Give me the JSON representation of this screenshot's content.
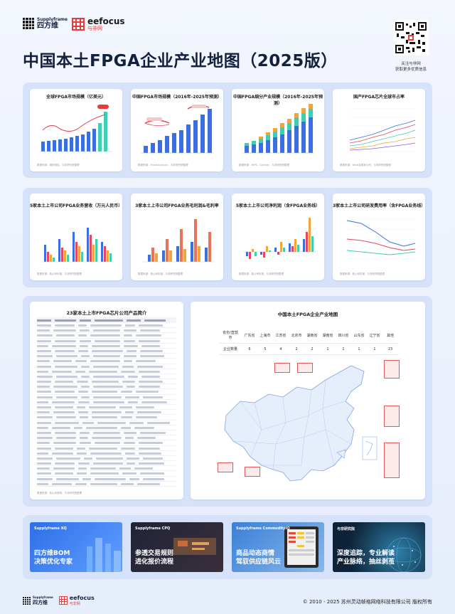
{
  "header": {
    "title": "中国本土FPGA企业产业地图（2025版）",
    "logo1_brand": "Supplyframe",
    "logo1_name": "四方维",
    "logo2_brand": "eefocus",
    "logo2_name": "与非网",
    "qr_caption_line1": "关注与非网",
    "qr_caption_line2": "获取更多优质信息"
  },
  "charts_row1": [
    {
      "title": "全球FPGA市场规模（亿美元）",
      "source": "数据来源：调研报告，与非研究院整理"
    },
    {
      "title": "中国FPGA市场规模（2016年-2025年预测）",
      "source": "数据来源：Frost&Sullivan，与非研究院整理"
    },
    {
      "title": "中国FPGA细分产业规模（2016年-2025年预测）",
      "source": "数据来源：MIPS，Gartner，与非研究院整理"
    },
    {
      "title": "国产FPGA芯片全球市占率",
      "source": "数据来源：Wind及各家公司，与非研究院整理"
    }
  ],
  "charts_row2": [
    {
      "title": "5家本土上市公司FPGA业务营收（万元人民币）",
      "source": "数据来源：各公司年报，与非研究院整理"
    },
    {
      "title": "3家本土上市公司FPGA业务毛利润&毛利率",
      "source": "数据来源：各公司年报，与非研究院整理"
    },
    {
      "title": "5家本土上市公司净利润（含FPGA业务线）",
      "source": "数据来源：各公司年报，与非研究院整理"
    },
    {
      "title": "3家本土上市公司研发费用率（含FPGA业务线）",
      "source": "数据来源：各公司年报，与非研究院整理"
    }
  ],
  "product_table": {
    "title": "23家本土上市FPGA芯片公司产品简介",
    "source": "数据来源：各公司官网，与非研究院整理"
  },
  "map": {
    "title": "中国本土FPGA企业产业地图",
    "row1_label": "省份/直辖市",
    "row2_label": "企业数量",
    "provinces": [
      "广东省",
      "上海市",
      "江苏省",
      "北京市",
      "湖南省",
      "湖南省",
      "四川省",
      "山东省",
      "辽宁省",
      "其他"
    ],
    "counts": [
      "6",
      "5",
      "4",
      "2",
      "2",
      "1",
      "1",
      "1",
      "1",
      "23"
    ]
  },
  "promos": [
    {
      "brand": "Supplyframe XQ",
      "line1": "四方维BOM",
      "line2": "决策优化专家"
    },
    {
      "brand": "Supplyframe CPQ",
      "line1": "参透交易规则",
      "line2": "进化报价流程"
    },
    {
      "brand": "Supplyframe CommodityIQ",
      "line1": "商品动态商情",
      "line2": "驾驭供应链风云"
    },
    {
      "brand": "与非研究院",
      "line1": "深度追踪，专业解读",
      "line2": "产业脉络，抽丝剥茧"
    }
  ],
  "footer": {
    "copyright": "© 2010 - 2025 苏州灵动帧格网络科技有限公司 版权所有",
    "logo1_brand": "Supplyframe",
    "logo1_name": "四方维",
    "logo2_brand": "eefocus",
    "logo2_name": "与非网"
  },
  "colors": {
    "accent_red": "#e83a3a",
    "accent_blue": "#2f6fe4",
    "teal": "#3ecfb1",
    "panel": "#d6e2fa"
  }
}
